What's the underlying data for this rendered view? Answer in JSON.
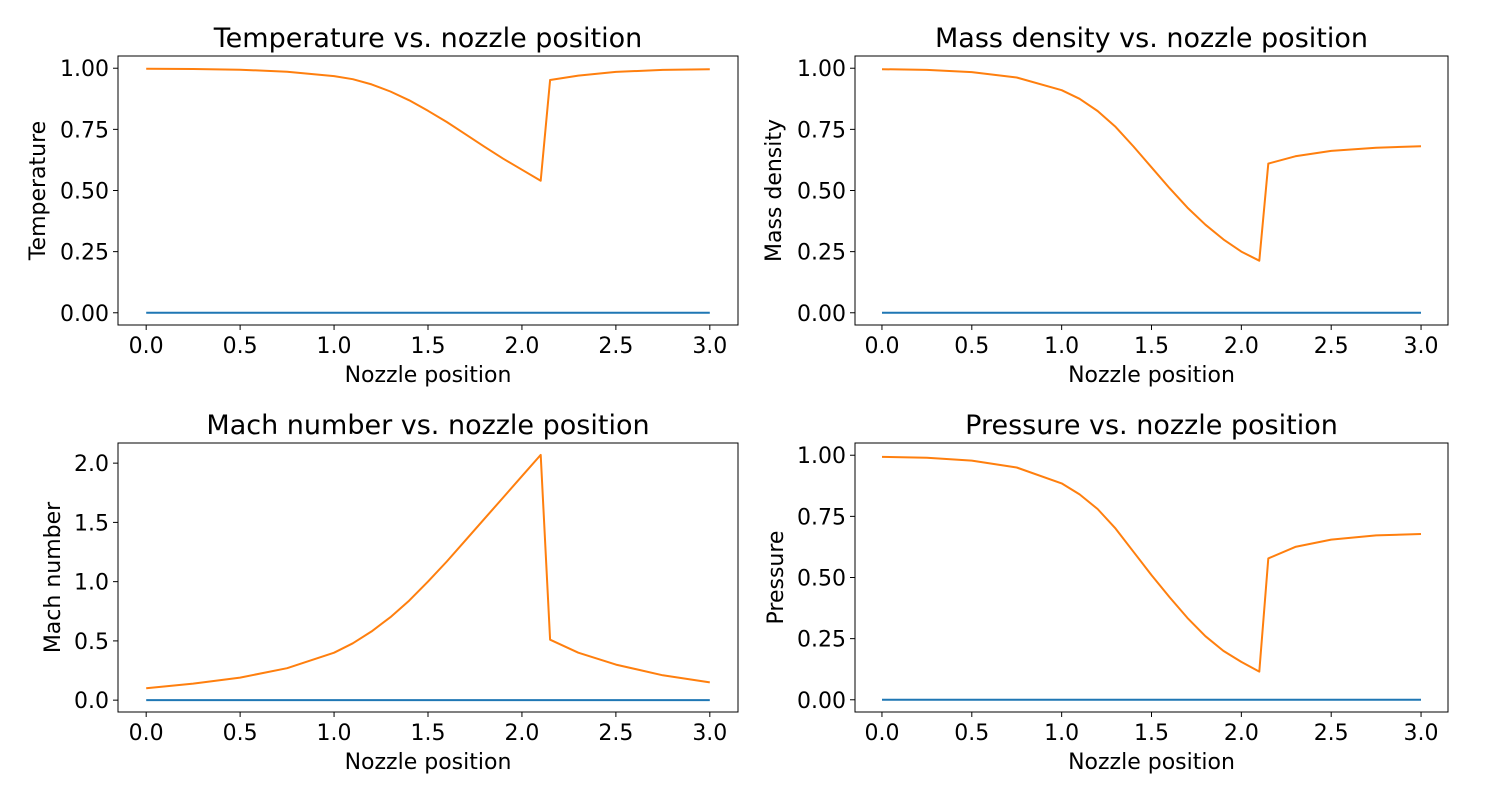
{
  "chart_data": [
    {
      "type": "line",
      "title": "Temperature vs. nozzle position",
      "xlabel": "Nozzle position",
      "ylabel": "Temperature",
      "xlim": [
        -0.15,
        3.15
      ],
      "ylim": [
        -0.05,
        1.05
      ],
      "xticks": [
        0.0,
        0.5,
        1.0,
        1.5,
        2.0,
        2.5,
        3.0
      ],
      "xtick_labels": [
        "0.0",
        "0.5",
        "1.0",
        "1.5",
        "2.0",
        "2.5",
        "3.0"
      ],
      "yticks": [
        0.0,
        0.25,
        0.5,
        0.75,
        1.0
      ],
      "ytick_labels": [
        "0.00",
        "0.25",
        "0.50",
        "0.75",
        "1.00"
      ],
      "grid": false,
      "series": [
        {
          "color": "#1f77b4",
          "x": [
            0.0,
            3.0
          ],
          "y": [
            0.0,
            0.0
          ]
        },
        {
          "color": "#ff7f0e",
          "x": [
            0.0,
            0.25,
            0.5,
            0.75,
            1.0,
            1.1,
            1.2,
            1.3,
            1.4,
            1.5,
            1.6,
            1.7,
            1.8,
            1.9,
            2.0,
            2.1,
            2.15,
            2.3,
            2.5,
            2.75,
            3.0
          ],
          "y": [
            0.998,
            0.997,
            0.994,
            0.986,
            0.968,
            0.955,
            0.934,
            0.905,
            0.869,
            0.826,
            0.78,
            0.73,
            0.679,
            0.63,
            0.585,
            0.54,
            0.952,
            0.97,
            0.985,
            0.993,
            0.996
          ]
        }
      ]
    },
    {
      "type": "line",
      "title": "Mass density vs. nozzle position",
      "xlabel": "Nozzle position",
      "ylabel": "Mass density",
      "xlim": [
        -0.15,
        3.15
      ],
      "ylim": [
        -0.05,
        1.05
      ],
      "xticks": [
        0.0,
        0.5,
        1.0,
        1.5,
        2.0,
        2.5,
        3.0
      ],
      "xtick_labels": [
        "0.0",
        "0.5",
        "1.0",
        "1.5",
        "2.0",
        "2.5",
        "3.0"
      ],
      "yticks": [
        0.0,
        0.25,
        0.5,
        0.75,
        1.0
      ],
      "ytick_labels": [
        "0.00",
        "0.25",
        "0.50",
        "0.75",
        "1.00"
      ],
      "grid": false,
      "series": [
        {
          "color": "#1f77b4",
          "x": [
            0.0,
            3.0
          ],
          "y": [
            0.0,
            0.0
          ]
        },
        {
          "color": "#ff7f0e",
          "x": [
            0.0,
            0.25,
            0.5,
            0.75,
            1.0,
            1.1,
            1.2,
            1.3,
            1.4,
            1.5,
            1.6,
            1.7,
            1.8,
            1.9,
            2.0,
            2.1,
            2.15,
            2.3,
            2.5,
            2.75,
            3.0
          ],
          "y": [
            0.996,
            0.993,
            0.984,
            0.962,
            0.91,
            0.875,
            0.825,
            0.76,
            0.68,
            0.595,
            0.51,
            0.43,
            0.36,
            0.3,
            0.25,
            0.213,
            0.61,
            0.64,
            0.662,
            0.675,
            0.681
          ]
        }
      ]
    },
    {
      "type": "line",
      "title": "Mach number vs. nozzle position",
      "xlabel": "Nozzle position",
      "ylabel": "Mach number",
      "xlim": [
        -0.15,
        3.15
      ],
      "ylim": [
        -0.1,
        2.17
      ],
      "xticks": [
        0.0,
        0.5,
        1.0,
        1.5,
        2.0,
        2.5,
        3.0
      ],
      "xtick_labels": [
        "0.0",
        "0.5",
        "1.0",
        "1.5",
        "2.0",
        "2.5",
        "3.0"
      ],
      "yticks": [
        0.0,
        0.5,
        1.0,
        1.5,
        2.0
      ],
      "ytick_labels": [
        "0.0",
        "0.5",
        "1.0",
        "1.5",
        "2.0"
      ],
      "grid": false,
      "series": [
        {
          "color": "#1f77b4",
          "x": [
            0.0,
            3.0
          ],
          "y": [
            0.0,
            0.0
          ]
        },
        {
          "color": "#ff7f0e",
          "x": [
            0.0,
            0.25,
            0.5,
            0.75,
            1.0,
            1.1,
            1.2,
            1.3,
            1.4,
            1.5,
            1.6,
            1.7,
            1.8,
            1.9,
            2.0,
            2.1,
            2.15,
            2.3,
            2.5,
            2.75,
            3.0
          ],
          "y": [
            0.1,
            0.14,
            0.19,
            0.27,
            0.4,
            0.48,
            0.58,
            0.7,
            0.84,
            1.0,
            1.17,
            1.35,
            1.53,
            1.71,
            1.89,
            2.07,
            0.51,
            0.4,
            0.3,
            0.21,
            0.15
          ]
        }
      ]
    },
    {
      "type": "line",
      "title": "Pressure vs. nozzle position",
      "xlabel": "Nozzle position",
      "ylabel": "Pressure",
      "xlim": [
        -0.15,
        3.15
      ],
      "ylim": [
        -0.05,
        1.05
      ],
      "xticks": [
        0.0,
        0.5,
        1.0,
        1.5,
        2.0,
        2.5,
        3.0
      ],
      "xtick_labels": [
        "0.0",
        "0.5",
        "1.0",
        "1.5",
        "2.0",
        "2.5",
        "3.0"
      ],
      "yticks": [
        0.0,
        0.25,
        0.5,
        0.75,
        1.0
      ],
      "ytick_labels": [
        "0.00",
        "0.25",
        "0.50",
        "0.75",
        "1.00"
      ],
      "grid": false,
      "series": [
        {
          "color": "#1f77b4",
          "x": [
            0.0,
            3.0
          ],
          "y": [
            0.0,
            0.0
          ]
        },
        {
          "color": "#ff7f0e",
          "x": [
            0.0,
            0.25,
            0.5,
            0.75,
            1.0,
            1.1,
            1.2,
            1.3,
            1.4,
            1.5,
            1.6,
            1.7,
            1.8,
            1.9,
            2.0,
            2.1,
            2.15,
            2.3,
            2.5,
            2.75,
            3.0
          ],
          "y": [
            0.993,
            0.99,
            0.978,
            0.95,
            0.885,
            0.84,
            0.78,
            0.7,
            0.605,
            0.51,
            0.42,
            0.335,
            0.26,
            0.2,
            0.155,
            0.115,
            0.578,
            0.625,
            0.655,
            0.672,
            0.678
          ]
        }
      ]
    }
  ]
}
